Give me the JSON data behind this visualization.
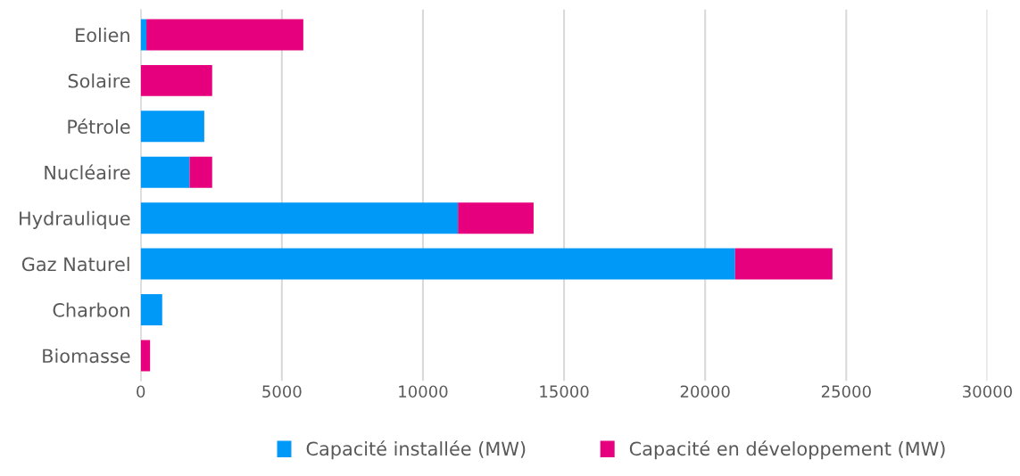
{
  "chart_data": {
    "type": "bar",
    "orientation": "horizontal",
    "stacked": true,
    "categories": [
      "Eolien",
      "Solaire",
      "Pétrole",
      "Nucléaire",
      "Hydraulique",
      "Gaz Naturel",
      "Charbon",
      "Biomasse"
    ],
    "series": [
      {
        "name": "Capacité installée (MW)",
        "color": "#0099f7",
        "values": [
          200,
          0,
          2250,
          1730,
          11240,
          21060,
          760,
          0
        ]
      },
      {
        "name": "Capacité en développement (MW)",
        "color": "#e6007e",
        "values": [
          5560,
          2530,
          0,
          800,
          2680,
          3450,
          0,
          330
        ]
      }
    ],
    "xlim": [
      0,
      30000
    ],
    "xticks": [
      0,
      5000,
      10000,
      15000,
      20000,
      25000,
      30000
    ],
    "grid": "x",
    "legend": "bottom"
  }
}
